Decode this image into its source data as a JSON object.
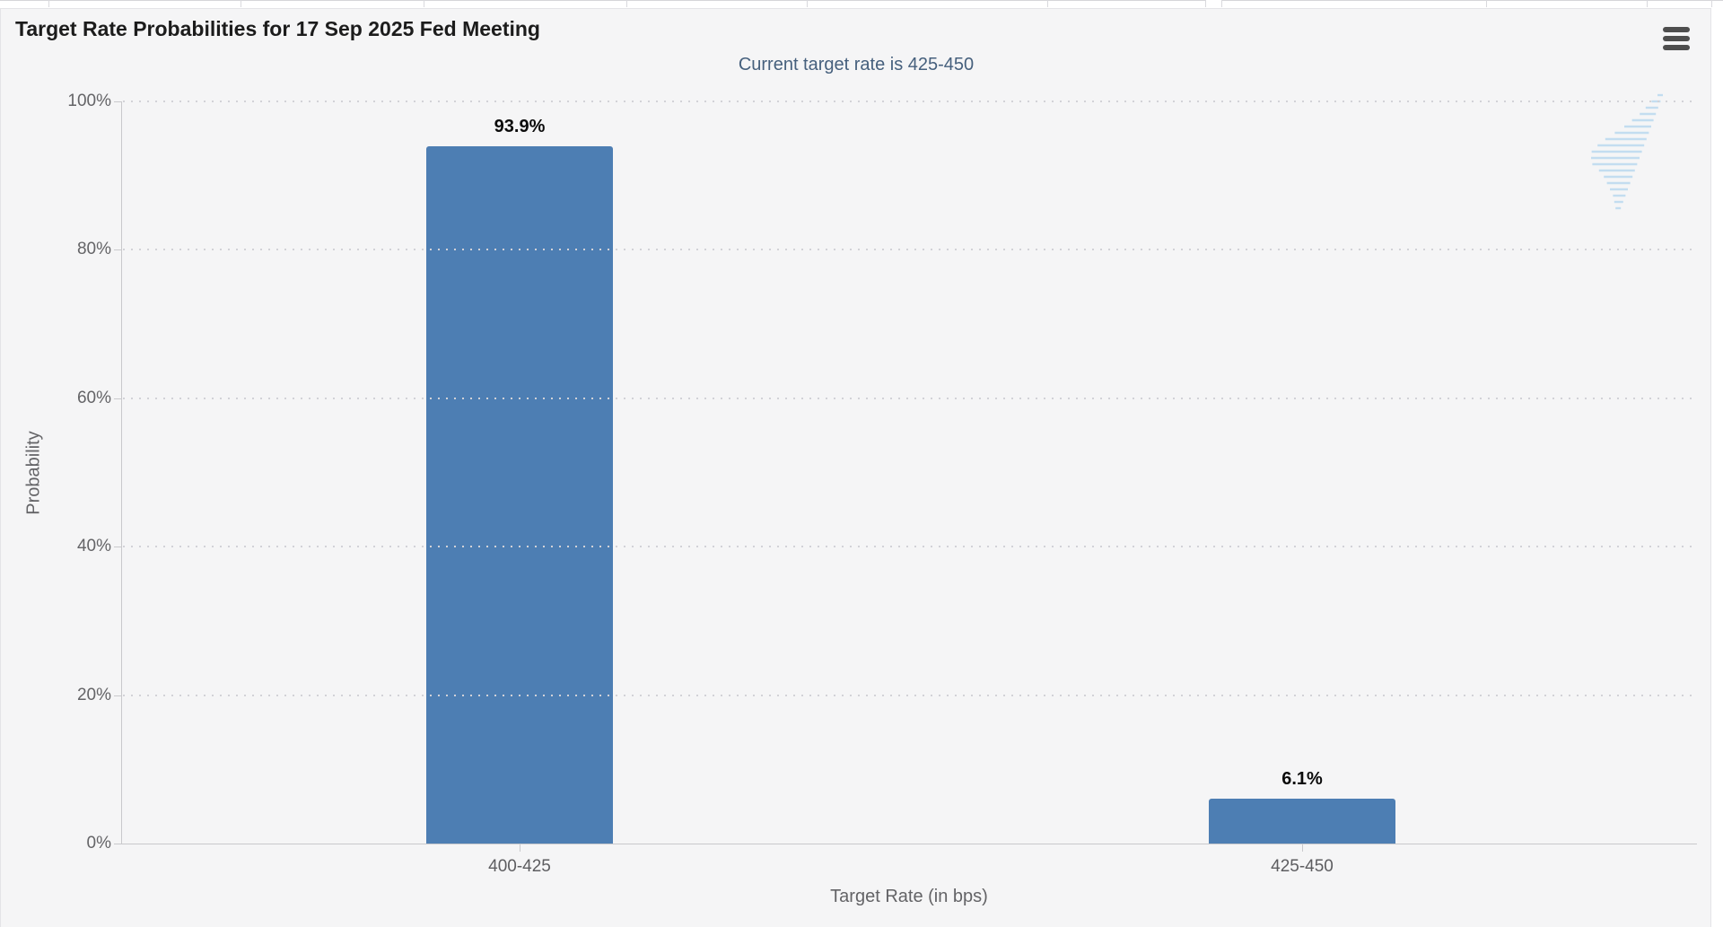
{
  "chart_data": {
    "type": "bar",
    "title": "Target Rate Probabilities for 17 Sep 2025 Fed Meeting",
    "subtitle": "Current target rate is 425-450",
    "categories": [
      "400-425",
      "425-450"
    ],
    "values": [
      93.9,
      6.1
    ],
    "value_labels": [
      "93.9%",
      "6.1%"
    ],
    "xlabel": "Target Rate (in bps)",
    "ylabel": "Probability",
    "ylim": [
      0,
      100
    ],
    "ytick_labels": [
      "100%",
      "80%",
      "60%",
      "40%",
      "20%",
      "0%"
    ],
    "grid": "horizontal-dotted",
    "legend": "none",
    "bar_color": "#4d7eb3",
    "subtitle_color": "#46607d",
    "watermark_letter": "Q",
    "watermark_color": "#c7c7ca",
    "watermark_lines_color": "#bedbf0"
  },
  "icons": {
    "menu": "hamburger-menu"
  }
}
